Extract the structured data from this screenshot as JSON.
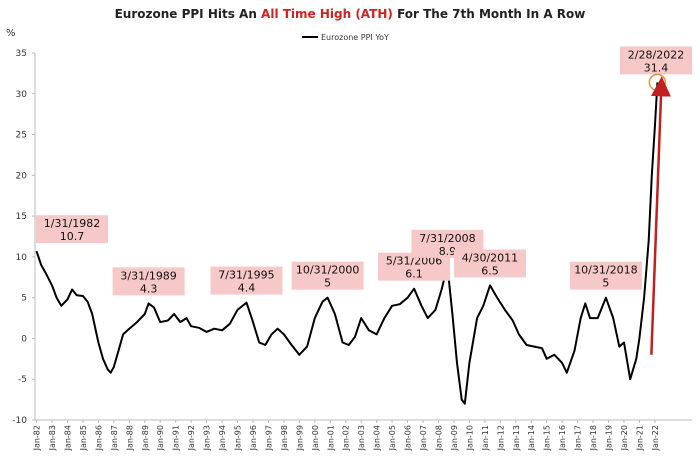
{
  "chart_data": {
    "type": "line",
    "title": [
      "Eurozone PPI Hits An ",
      "All Time High (ATH)",
      " For The 7th Month In A Row"
    ],
    "title_colors": [
      "#222222",
      "#d42020",
      "#222222"
    ],
    "y_label": "%",
    "legend": "top",
    "xlim": [
      1981.9,
      2024.4
    ],
    "ylim": [
      -10,
      35
    ],
    "yticks": [
      -10,
      -5,
      0,
      5,
      10,
      15,
      20,
      25,
      30,
      35
    ],
    "xticks": [
      {
        "value": 1982,
        "label": "Jan-82"
      },
      {
        "value": 1983,
        "label": "Jan-83"
      },
      {
        "value": 1984,
        "label": "Jan-84"
      },
      {
        "value": 1985,
        "label": "Jan-85"
      },
      {
        "value": 1986,
        "label": "Jan-86"
      },
      {
        "value": 1987,
        "label": "Jan-87"
      },
      {
        "value": 1988,
        "label": "Jan-88"
      },
      {
        "value": 1989,
        "label": "Jan-89"
      },
      {
        "value": 1990,
        "label": "Jan-90"
      },
      {
        "value": 1991,
        "label": "Jan-91"
      },
      {
        "value": 1992,
        "label": "Jan-92"
      },
      {
        "value": 1993,
        "label": "Jan-93"
      },
      {
        "value": 1994,
        "label": "Jan-94"
      },
      {
        "value": 1995,
        "label": "Jan-95"
      },
      {
        "value": 1996,
        "label": "Jan-96"
      },
      {
        "value": 1997,
        "label": "Jan-97"
      },
      {
        "value": 1998,
        "label": "Jan-98"
      },
      {
        "value": 1999,
        "label": "Jan-99"
      },
      {
        "value": 2000,
        "label": "Jan-00"
      },
      {
        "value": 2001,
        "label": "Jan-01"
      },
      {
        "value": 2002,
        "label": "Jan-02"
      },
      {
        "value": 2003,
        "label": "Jan-03"
      },
      {
        "value": 2004,
        "label": "Jan-04"
      },
      {
        "value": 2005,
        "label": "Jan-05"
      },
      {
        "value": 2006,
        "label": "Jan-06"
      },
      {
        "value": 2007,
        "label": "Jan-07"
      },
      {
        "value": 2008,
        "label": "Jan-08"
      },
      {
        "value": 2009,
        "label": "Jan-09"
      },
      {
        "value": 2010,
        "label": "Jan-10"
      },
      {
        "value": 2011,
        "label": "Jan-11"
      },
      {
        "value": 2012,
        "label": "Jan-12"
      },
      {
        "value": 2013,
        "label": "Jan-13"
      },
      {
        "value": 2014,
        "label": "Jan-14"
      },
      {
        "value": 2015,
        "label": "Jan-15"
      },
      {
        "value": 2016,
        "label": "Jan-16"
      },
      {
        "value": 2017,
        "label": "Jan-17"
      },
      {
        "value": 2018,
        "label": "Jan-18"
      },
      {
        "value": 2019,
        "label": "Jan-19"
      },
      {
        "value": 2020,
        "label": "Jan-20"
      },
      {
        "value": 2021,
        "label": "Jan-21"
      },
      {
        "value": 2022,
        "label": "Jan-22"
      }
    ],
    "x": [
      1982.0,
      1982.3,
      1982.6,
      1983.0,
      1983.3,
      1983.6,
      1984.0,
      1984.3,
      1984.6,
      1985.0,
      1985.3,
      1985.6,
      1986.0,
      1986.3,
      1986.6,
      1986.8,
      1987.0,
      1987.3,
      1987.6,
      1988.0,
      1988.5,
      1989.0,
      1989.25,
      1989.6,
      1990.0,
      1990.5,
      1990.9,
      1991.3,
      1991.7,
      1992.0,
      1992.5,
      1993.0,
      1993.5,
      1994.0,
      1994.5,
      1995.0,
      1995.58,
      1996.0,
      1996.4,
      1996.8,
      1997.2,
      1997.6,
      1998.0,
      1998.5,
      1999.0,
      1999.5,
      2000.0,
      2000.5,
      2000.83,
      2001.3,
      2001.8,
      2002.2,
      2002.6,
      2003.0,
      2003.5,
      2004.0,
      2004.5,
      2005.0,
      2005.5,
      2006.0,
      2006.42,
      2006.9,
      2007.3,
      2007.8,
      2008.2,
      2008.58,
      2008.9,
      2009.2,
      2009.5,
      2009.7,
      2010.0,
      2010.5,
      2010.9,
      2011.33,
      2011.8,
      2012.3,
      2012.8,
      2013.2,
      2013.7,
      2014.2,
      2014.7,
      2015.0,
      2015.5,
      2016.0,
      2016.3,
      2016.8,
      2017.2,
      2017.5,
      2017.8,
      2018.3,
      2018.83,
      2019.3,
      2019.7,
      2020.0,
      2020.4,
      2020.8,
      2021.0,
      2021.3,
      2021.6,
      2021.8,
      2022.0,
      2022.16
    ],
    "series": [
      {
        "name": "Eurozone PPI YoY",
        "color": "#000000",
        "values": [
          10.7,
          9.0,
          8.0,
          6.5,
          5.0,
          4.0,
          4.8,
          6.0,
          5.3,
          5.2,
          4.5,
          3.0,
          -0.5,
          -2.5,
          -3.8,
          -4.2,
          -3.5,
          -1.5,
          0.5,
          1.2,
          2.0,
          3.0,
          4.3,
          3.8,
          2.0,
          2.2,
          3.0,
          2.0,
          2.5,
          1.5,
          1.3,
          0.8,
          1.2,
          1.0,
          1.8,
          3.5,
          4.4,
          2.0,
          -0.5,
          -0.8,
          0.5,
          1.2,
          0.5,
          -0.8,
          -2.0,
          -1.0,
          2.5,
          4.5,
          5.0,
          3.0,
          -0.5,
          -0.8,
          0.2,
          2.5,
          1.0,
          0.5,
          2.5,
          4.0,
          4.2,
          5.0,
          6.1,
          4.0,
          2.5,
          3.5,
          6.0,
          8.9,
          3.0,
          -3.0,
          -7.5,
          -8.0,
          -3.0,
          2.5,
          4.0,
          6.5,
          5.0,
          3.5,
          2.2,
          0.5,
          -0.8,
          -1.0,
          -1.2,
          -2.5,
          -2.0,
          -3.0,
          -4.2,
          -1.5,
          2.5,
          4.3,
          2.5,
          2.5,
          5.0,
          2.5,
          -1.0,
          -0.5,
          -5.0,
          -2.5,
          0.0,
          5.0,
          12.0,
          20.0,
          26.0,
          31.4
        ]
      }
    ],
    "annotations": [
      {
        "date": "1/31/1982",
        "x": 1982.0,
        "value": 10.7
      },
      {
        "date": "3/31/1989",
        "x": 1989.25,
        "value": 4.3
      },
      {
        "date": "7/31/1995",
        "x": 1995.58,
        "value": 4.4
      },
      {
        "date": "10/31/2000",
        "x": 2000.83,
        "value": 5.0
      },
      {
        "date": "5/31/2006",
        "x": 2006.42,
        "value": 6.1
      },
      {
        "date": "7/31/2008",
        "x": 2008.58,
        "value": 8.9
      },
      {
        "date": "4/30/2011",
        "x": 2011.33,
        "value": 6.5
      },
      {
        "date": "10/31/2018",
        "x": 2018.83,
        "value": 5.0
      },
      {
        "date": "2/28/2022",
        "x": 2022.16,
        "value": 31.4
      }
    ]
  }
}
